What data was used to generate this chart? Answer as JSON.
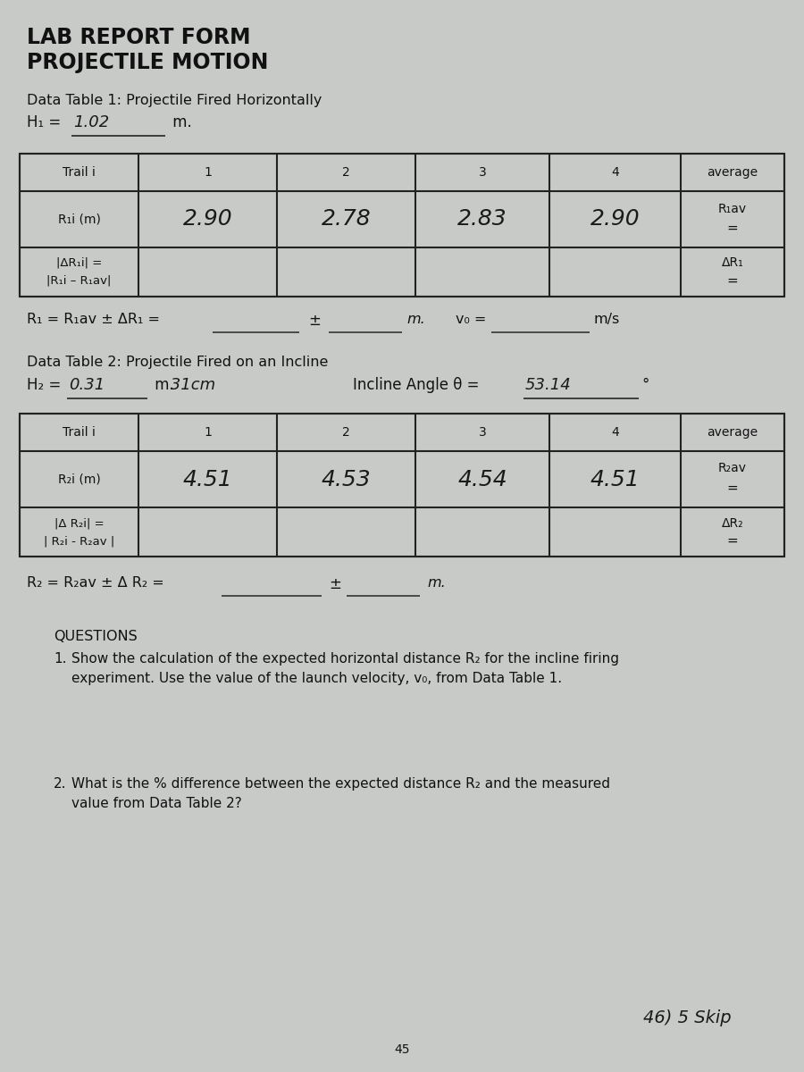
{
  "title_line1": "LAB REPORT FORM",
  "title_line2": "PROJECTILE MOTION",
  "section1_title": "Data Table 1: Projectile Fired Horizontally",
  "h1_label": "H₁ = ",
  "h1_value": "1.02",
  "h1_unit": " m.",
  "table1_headers": [
    "Trail i",
    "1",
    "2",
    "3",
    "4",
    "average"
  ],
  "table1_row1_label": "R₁i (m)",
  "table1_row1_vals": [
    "2.90",
    "2.78",
    "2.83",
    "2.90"
  ],
  "table1_row1_avg_top": "R₁av",
  "table1_row2_line1": "|ΔR₁i| =",
  "table1_row2_line2": "|R₁i – R₁av|",
  "table1_row2_avg_top": "ΔR₁",
  "r1_formula": "R₁ = R₁av ± ΔR₁ =",
  "r1_unit": "m.",
  "v0_label": "v₀ =",
  "v0_unit": "m/s",
  "section2_title": "Data Table 2: Projectile Fired on an Incline",
  "h2_label": "H₂ =",
  "h2_value": "0.31",
  "h2_unit": " m.",
  "h2_extra": " 31cm",
  "incline_label": "Incline Angle θ =",
  "incline_value": "53.14",
  "incline_degree": "°",
  "table2_headers": [
    "Trail i",
    "1",
    "2",
    "3",
    "4",
    "average"
  ],
  "table2_row1_label": "R₂i (m)",
  "table2_row1_vals": [
    "4.51",
    "4.53",
    "4.54",
    "4.51"
  ],
  "table2_row1_avg_top": "R₂av",
  "table2_row2_line1": "|Δ R₂i| =",
  "table2_row2_line2": "| R₂i - R₂av |",
  "table2_row2_avg_top": "ΔR₂",
  "r2_formula": "R₂ = R₂av ± Δ R₂ =",
  "r2_unit": "m.",
  "questions_title": "QUESTIONS",
  "question1_num": "1.",
  "question1_text": "Show the calculation of the expected horizontal distance R₂ for the incline firing",
  "question1_text2": "experiment. Use the value of the launch velocity, v₀, from Data Table 1.",
  "question2_num": "2.",
  "question2_text": "What is the % difference between the expected distance R₂ and the measured",
  "question2_text2": "value from Data Table 2?",
  "footer_text": "46) 5 Skip",
  "page_number": "45",
  "bg_color": "#c8cac8",
  "paper_color": "#e8e6e2",
  "text_color": "#111111",
  "handwriting_color": "#1a1a1a",
  "line_color": "#333333",
  "table_line_color": "#222222"
}
